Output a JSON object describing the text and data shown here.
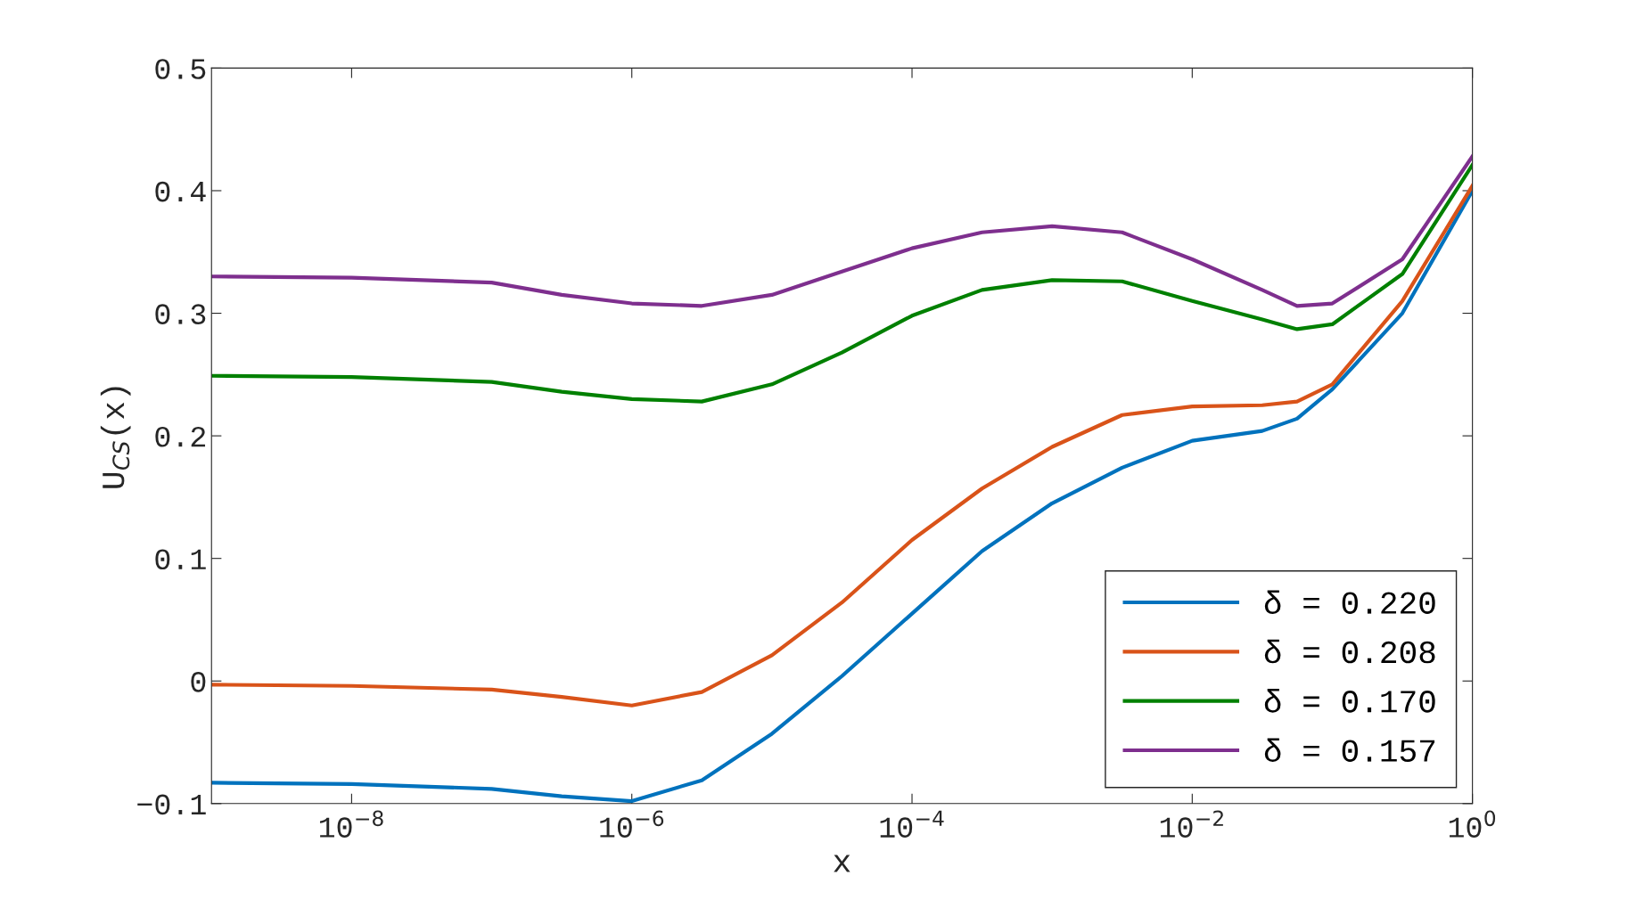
{
  "chart_data": {
    "type": "line",
    "xlabel": "x",
    "ylabel": "U$_{CS}$(x)",
    "log": "x",
    "grid": false,
    "legend": "bottom right",
    "line_style": "solid",
    "marker": "none",
    "x": [
      1e-09,
      1e-08,
      1e-07,
      3.16e-07,
      1e-06,
      3.16e-06,
      1e-05,
      3.16e-05,
      0.0001,
      0.000316,
      0.001,
      0.00316,
      0.01,
      0.0316,
      0.056,
      0.1,
      0.316,
      1
    ],
    "series": [
      {
        "name": "δ = 0.220",
        "color": "#0072bd",
        "values": [
          -0.083,
          -0.084,
          -0.088,
          -0.094,
          -0.098,
          -0.081,
          -0.043,
          0.004,
          0.055,
          0.106,
          0.145,
          0.174,
          0.196,
          0.204,
          0.214,
          0.238,
          0.3,
          0.4
        ]
      },
      {
        "name": "δ = 0.208",
        "color": "#d95319",
        "values": [
          -0.003,
          -0.004,
          -0.007,
          -0.013,
          -0.02,
          -0.009,
          0.021,
          0.064,
          0.115,
          0.157,
          0.191,
          0.217,
          0.224,
          0.225,
          0.228,
          0.242,
          0.31,
          0.404
        ]
      },
      {
        "name": "δ = 0.170",
        "color": "#008000",
        "values": [
          0.249,
          0.248,
          0.244,
          0.236,
          0.23,
          0.228,
          0.242,
          0.268,
          0.298,
          0.319,
          0.327,
          0.326,
          0.31,
          0.295,
          0.287,
          0.291,
          0.332,
          0.421
        ]
      },
      {
        "name": "δ = 0.157",
        "color": "#7e2f8e",
        "values": [
          0.33,
          0.329,
          0.325,
          0.315,
          0.308,
          0.306,
          0.315,
          0.334,
          0.353,
          0.366,
          0.371,
          0.366,
          0.344,
          0.319,
          0.306,
          0.308,
          0.344,
          0.428
        ]
      }
    ],
    "xlim": [
      1e-09,
      1
    ],
    "xticks": [
      {
        "value": 1e-08,
        "label": "10$^{−8}$"
      },
      {
        "value": 1e-06,
        "label": "10$^{−6}$"
      },
      {
        "value": 0.0001,
        "label": "10$^{−4}$"
      },
      {
        "value": 0.01,
        "label": "10$^{−2}$"
      },
      {
        "value": 1,
        "label": "10$^{0}$"
      }
    ],
    "ylim": [
      -0.1,
      0.5
    ],
    "yticks": [
      {
        "value": -0.1,
        "label": "−0.1"
      },
      0,
      0.1,
      0.2,
      0.3,
      0.4,
      0.5
    ]
  }
}
